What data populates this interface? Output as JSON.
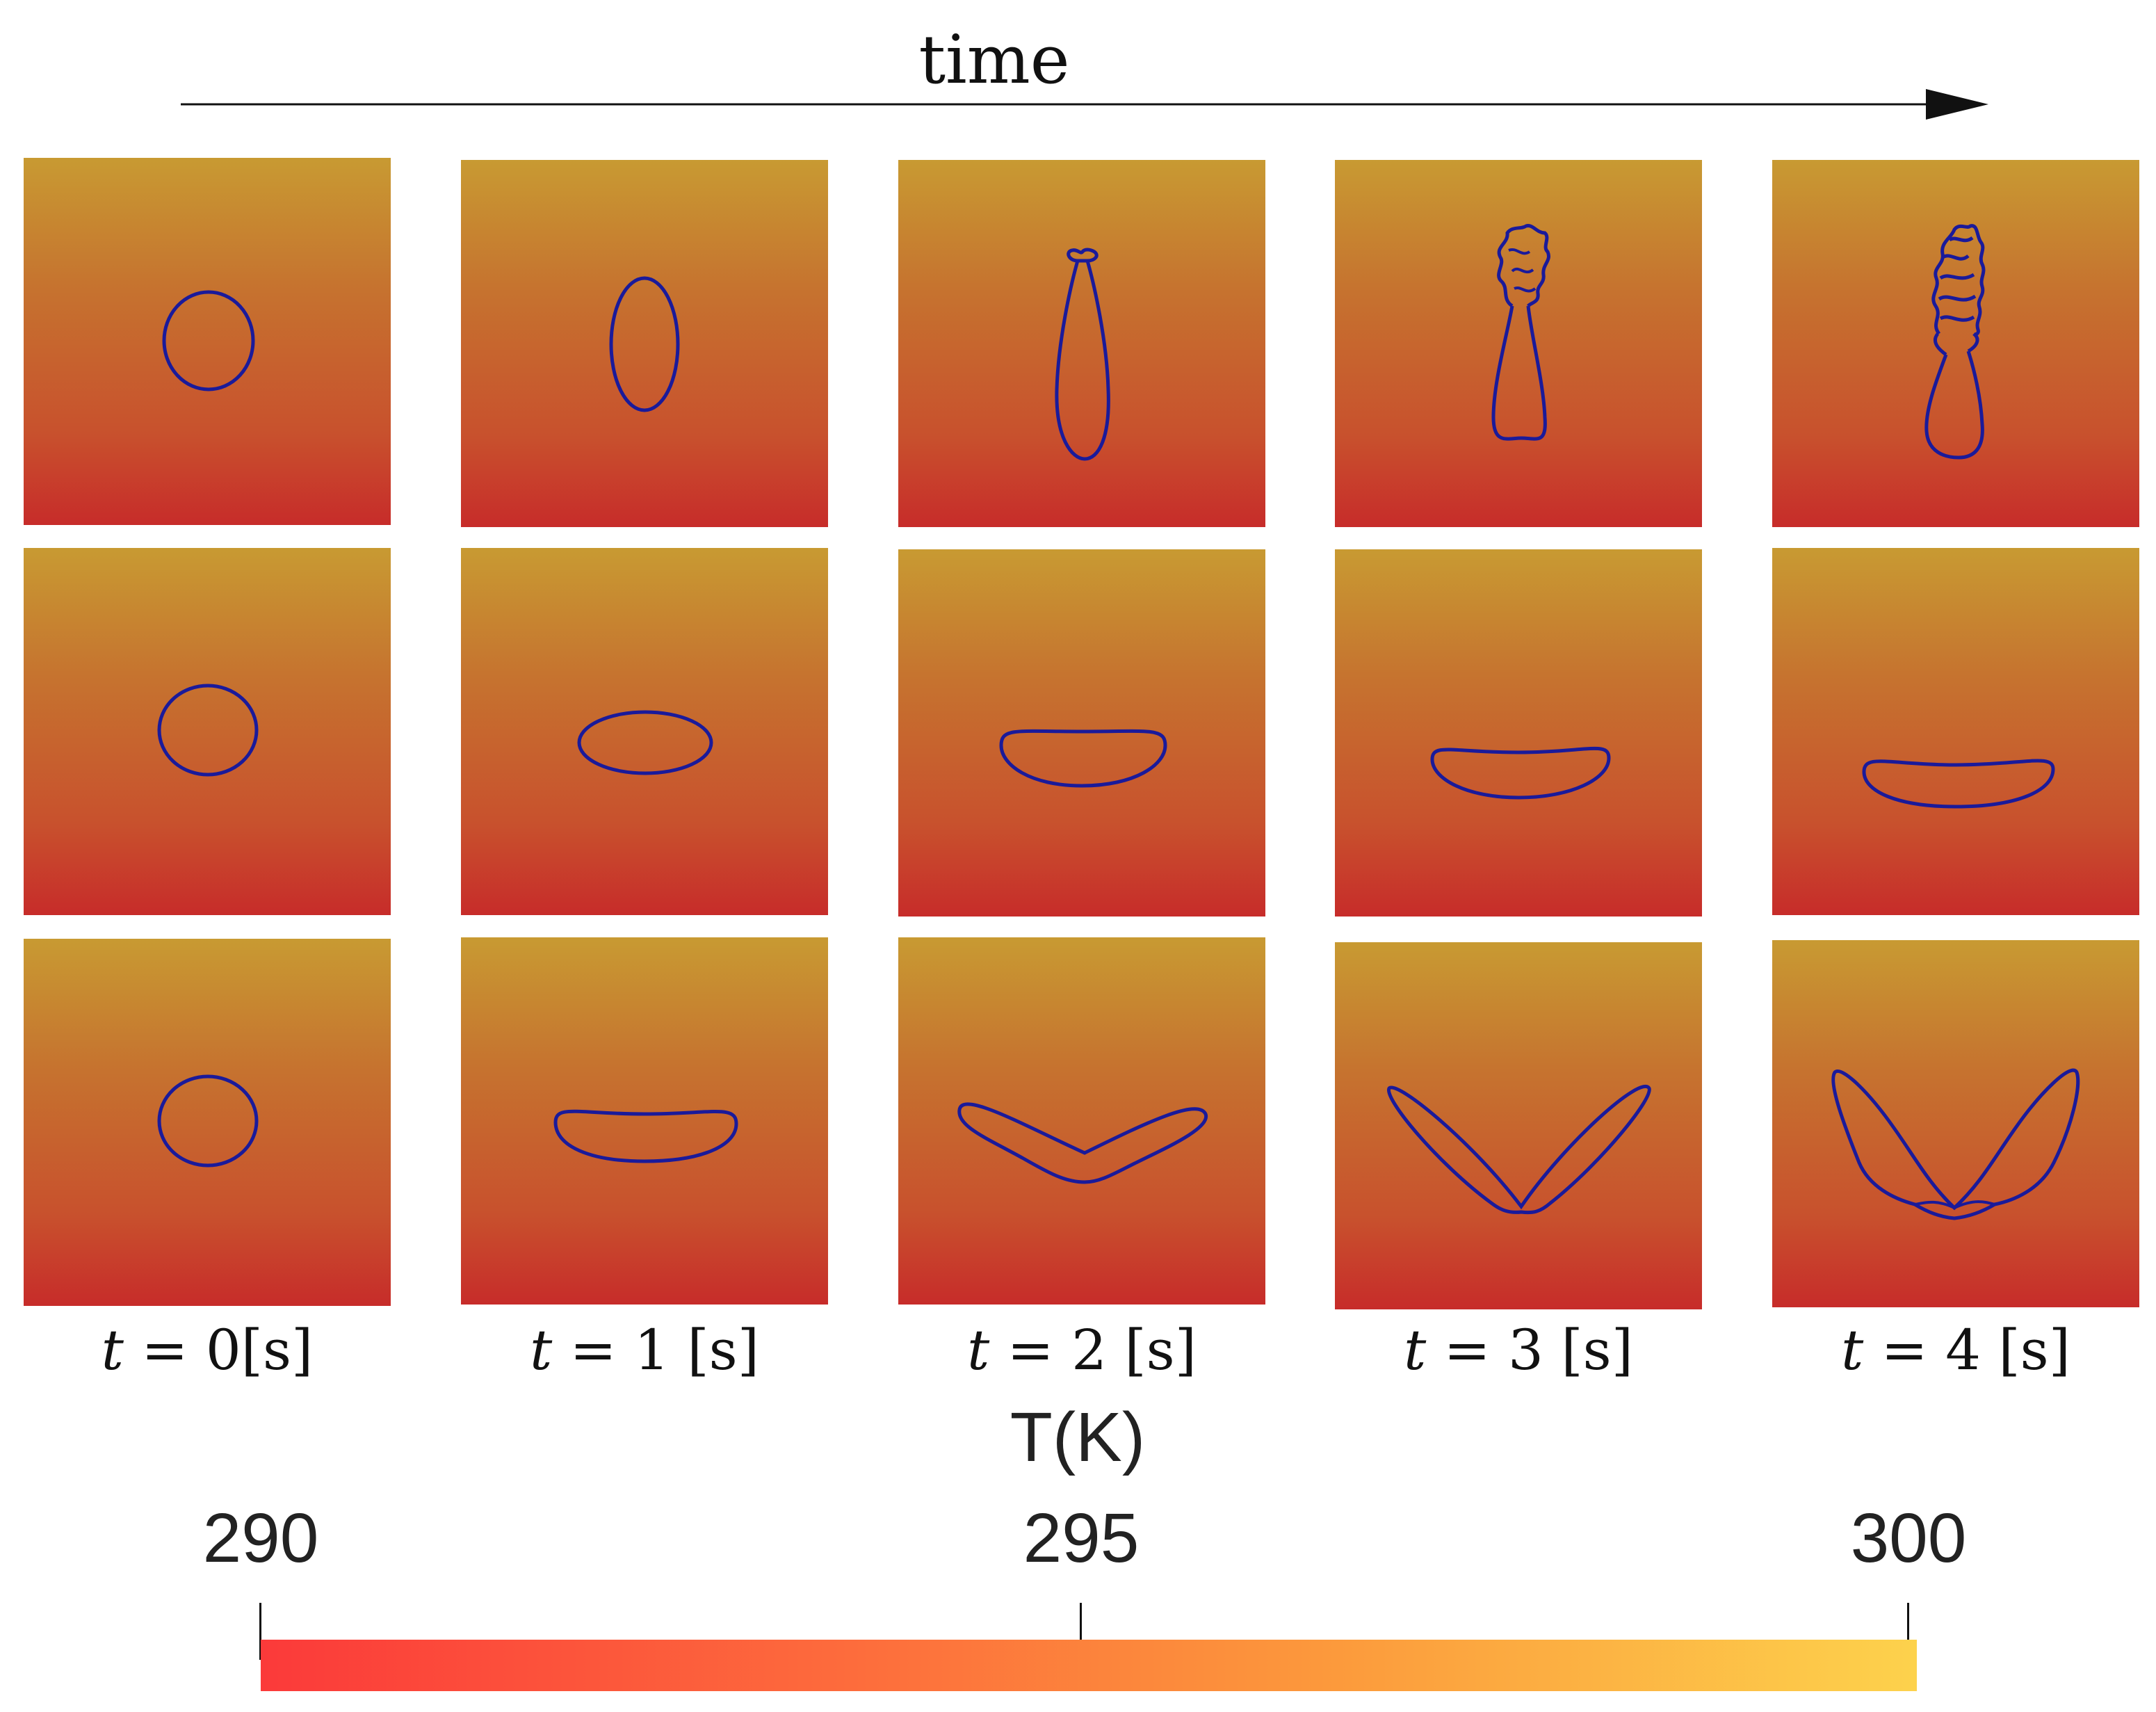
{
  "header": {
    "title": "time"
  },
  "time_labels": [
    {
      "var": "t",
      "eq": " = ",
      "val": "0[s]"
    },
    {
      "var": "t",
      "eq": " = ",
      "val": "1 [s]"
    },
    {
      "var": "t",
      "eq": " = ",
      "val": "2 [s]"
    },
    {
      "var": "t",
      "eq": " = ",
      "val": "3 [s]"
    },
    {
      "var": "t",
      "eq": " = ",
      "val": "4 [s]"
    }
  ],
  "colorbar": {
    "title": "T(K)",
    "ticks": [
      "290",
      "295",
      "300"
    ],
    "min": 290,
    "max": 300,
    "colors": [
      "#fb3a3a",
      "#fdd24c"
    ]
  },
  "colors": {
    "panel_top": "#c89a32",
    "panel_bottom": "#c72c2a",
    "interface": "#1a1a9a"
  }
}
